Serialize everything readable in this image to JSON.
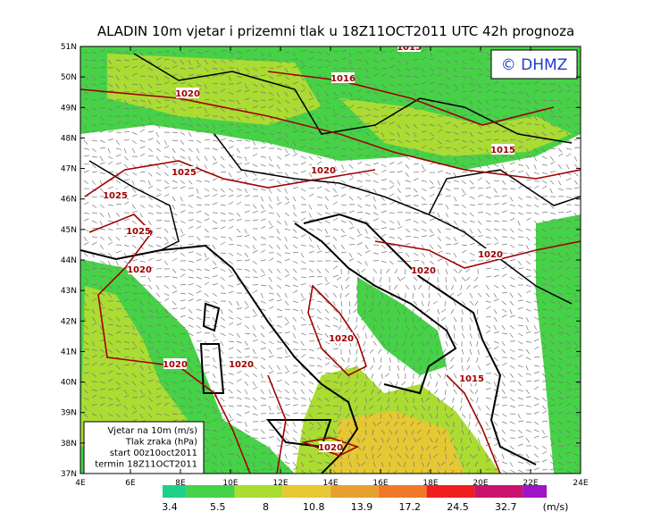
{
  "title": "ALADIN 10m vjetar i prizemni tlak u 18Z11OCT2011 UTC 42h prognoza",
  "logo": "© DHMZ",
  "y_axis_labels": [
    "51N",
    "50N",
    "49N",
    "48N",
    "47N",
    "46N",
    "45N",
    "44N",
    "43N",
    "42N",
    "41N",
    "40N",
    "39N",
    "38N",
    "37N"
  ],
  "x_axis_labels": [
    "4E",
    "6E",
    "8E",
    "10E",
    "12E",
    "14E",
    "16E",
    "18E",
    "20E",
    "22E",
    "24E"
  ],
  "isobar_labels": [
    "1015",
    "1016",
    "1020",
    "1015",
    "1025",
    "1020",
    "1025",
    "1025",
    "1020",
    "1020",
    "1020",
    "1020",
    "1020",
    "1020",
    "1015",
    "1020"
  ],
  "legend_box": [
    "Vjetar na 10m (m/s)",
    "Tlak zraka (hPa)",
    "start 00z10oct2011",
    "termin 18Z11OCT2011"
  ],
  "colorbar": {
    "levels": [
      "3.4",
      "5.5",
      "8",
      "10.8",
      "13.9",
      "17.2",
      "24.5",
      "32.7"
    ],
    "colors": [
      "#1ed285",
      "#46d246",
      "#aadc32",
      "#e6c832",
      "#e6a02d",
      "#f07828",
      "#f01e1e",
      "#c8146e",
      "#a014c8"
    ],
    "unit": "(m/s)"
  }
}
